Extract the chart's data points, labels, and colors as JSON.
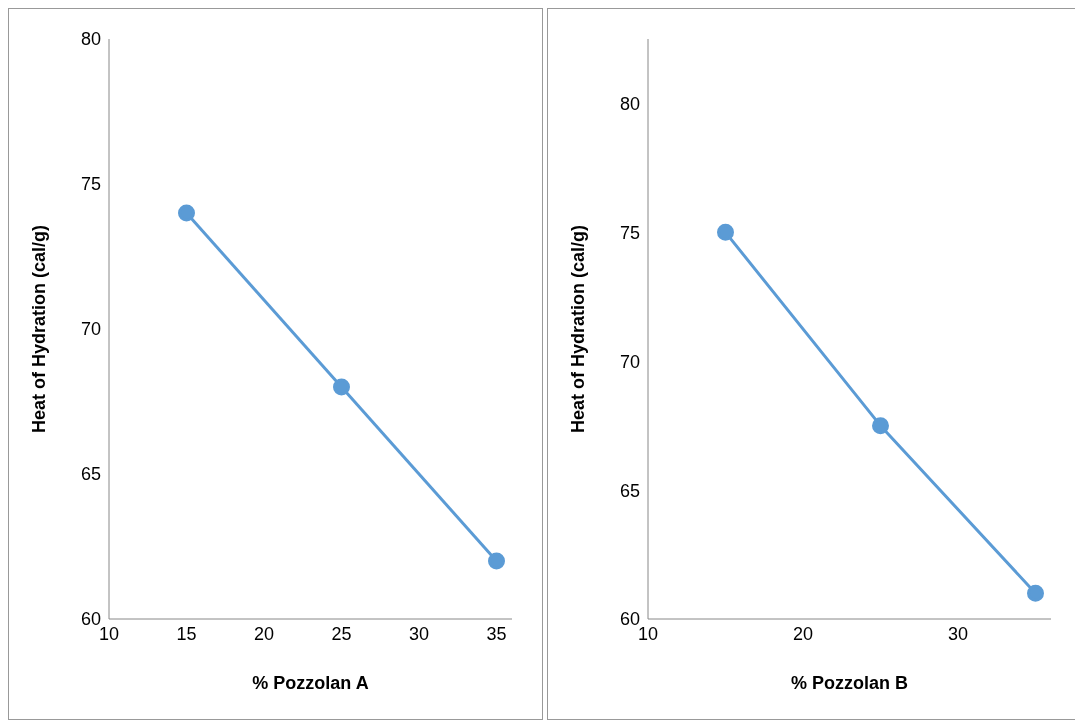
{
  "chart_data": [
    {
      "type": "line",
      "xlabel": "% Pozzolan A",
      "ylabel": "Heat of Hydration (cal/g)",
      "x": [
        15,
        25,
        35
      ],
      "series": [
        {
          "color": "#5b9bd5",
          "values": [
            74,
            68,
            62
          ]
        }
      ],
      "xlim": [
        10,
        36
      ],
      "xticks": [
        10,
        15,
        20,
        25,
        30,
        35
      ],
      "ylim": [
        60,
        80
      ],
      "yticks": [
        60,
        65,
        70,
        75,
        80
      ],
      "grid": false,
      "marker": "circle",
      "line_style": "solid"
    },
    {
      "type": "line",
      "xlabel": "% Pozzolan B",
      "ylabel": "Heat of Hydration (cal/g)",
      "x": [
        15,
        25,
        35
      ],
      "series": [
        {
          "color": "#5b9bd5",
          "values": [
            75,
            67.5,
            61
          ]
        }
      ],
      "xlim": [
        10,
        36
      ],
      "xticks": [
        10,
        20,
        30
      ],
      "ylim": [
        60,
        82.5
      ],
      "yticks": [
        60,
        65,
        70,
        75,
        80
      ],
      "grid": false,
      "marker": "circle",
      "line_style": "solid"
    }
  ]
}
